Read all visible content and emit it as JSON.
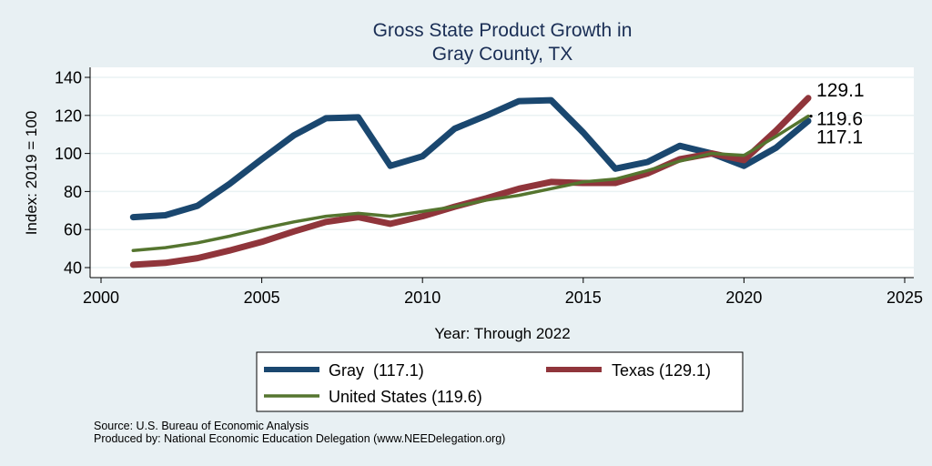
{
  "chart_data": {
    "type": "line",
    "title": [
      "Gross State Product Growth in",
      "Gray County, TX"
    ],
    "xlabel": "Year: Through 2022",
    "ylabel": "Index: 2019 = 100",
    "xlim": [
      1999.6,
      2025.3
    ],
    "ylim": [
      35,
      146
    ],
    "xticks": [
      2000,
      2005,
      2010,
      2015,
      2020,
      2025
    ],
    "yticks": [
      40,
      60,
      80,
      100,
      120,
      140
    ],
    "grid": true,
    "legend_position": "bottom",
    "x": [
      2001,
      2002,
      2003,
      2004,
      2005,
      2006,
      2007,
      2008,
      2009,
      2010,
      2011,
      2012,
      2013,
      2014,
      2015,
      2016,
      2017,
      2018,
      2019,
      2020,
      2021,
      2022
    ],
    "series": [
      {
        "name": "Gray",
        "legend_label": "Gray  (117.1)",
        "color": "#1a476f",
        "values": [
          66.5,
          67.5,
          72.5,
          84,
          97,
          109.5,
          118.5,
          119,
          93.5,
          98.5,
          113,
          120,
          127.5,
          128,
          111,
          92,
          95.5,
          104,
          100,
          93.5,
          103,
          117.1
        ],
        "end_label": "117.1"
      },
      {
        "name": "Texas",
        "legend_label": "Texas (129.1)",
        "color": "#90353b",
        "values": [
          41.5,
          42.5,
          45,
          49,
          53.5,
          59,
          64,
          66.5,
          63,
          67,
          72,
          76.5,
          81.5,
          85,
          84.5,
          84.5,
          89.5,
          97,
          100,
          96.5,
          112,
          129.1
        ],
        "end_label": "129.1"
      },
      {
        "name": "United States",
        "legend_label": "United States (119.6)",
        "color": "#55752f",
        "values": [
          49,
          50.5,
          53,
          56.5,
          60.5,
          64,
          67,
          68.5,
          67,
          69.5,
          72,
          75.5,
          78,
          81.5,
          85,
          86.5,
          91,
          96,
          100,
          99,
          109,
          119.6
        ],
        "end_label": "119.6"
      }
    ]
  },
  "notes": {
    "source": "Source: U.S. Bureau of Economic Analysis",
    "produced_by": "Produced by: National Economic Education Delegation (www.NEEDelegation.org)"
  },
  "colors": {
    "background": "#e8f0f3",
    "plot_background": "#ffffff",
    "grid": "#eaf2f3",
    "title": "#1a2e55"
  }
}
